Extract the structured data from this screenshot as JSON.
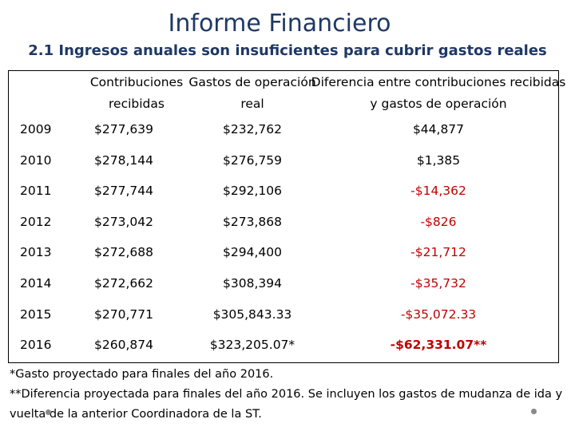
{
  "header": {
    "title": "Informe Financiero",
    "subtitle": "2.1 Ingresos anuales son insuficientes para cubrir gastos reales"
  },
  "table": {
    "columns": [
      "Contribuciones recibidas",
      "Gastos de operación real",
      "Diferencia entre contribuciones recibidas y gastos de operación"
    ],
    "rows": [
      [
        "2009",
        "$277,639",
        "$232,762",
        "$44,877"
      ],
      [
        "2010",
        "$278,144",
        "$276,759",
        "$1,385"
      ],
      [
        "2011",
        "$277,744",
        "$292,106",
        "-$14,362"
      ],
      [
        "2012",
        "$273,042",
        "$273,868",
        "-$826"
      ],
      [
        "2013",
        "$272,688",
        "$294,400",
        "-$21,712"
      ],
      [
        "2014",
        "$272,662",
        "$308,394",
        "-$35,732"
      ],
      [
        "2015",
        "$270,771",
        "$305,843.33",
        "-$35,072.33"
      ],
      [
        "2016",
        "$260,874",
        "$323,205.07*",
        "-$62,331.07**"
      ]
    ]
  },
  "footnotes": [
    "*Gasto proyectado para finales del año 2016.",
    "**Diferencia proyectada para finales del año 2016. Se incluyen los gastos de mudanza de ida y vuelta de la anterior Coordinadora de la ST."
  ]
}
